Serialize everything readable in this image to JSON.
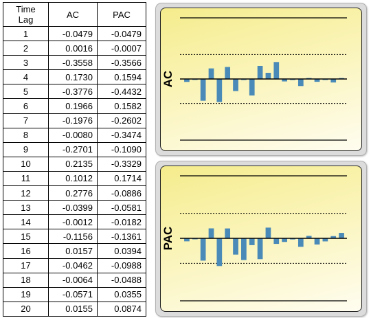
{
  "table": {
    "header": {
      "lag_line1": "Time",
      "lag_line2": "Lag",
      "ac": "AC",
      "pac": "PAC"
    },
    "rows": [
      {
        "lag": "1",
        "ac": "-0.0479",
        "pac": "-0.0479"
      },
      {
        "lag": "2",
        "ac": "0.0016",
        "pac": "-0.0007"
      },
      {
        "lag": "3",
        "ac": "-0.3558",
        "pac": "-0.3566"
      },
      {
        "lag": "4",
        "ac": "0.1730",
        "pac": "0.1594"
      },
      {
        "lag": "5",
        "ac": "-0.3776",
        "pac": "-0.4432"
      },
      {
        "lag": "6",
        "ac": "0.1966",
        "pac": "0.1582"
      },
      {
        "lag": "7",
        "ac": "-0.1976",
        "pac": "-0.2602"
      },
      {
        "lag": "8",
        "ac": "-0.0080",
        "pac": "-0.3474"
      },
      {
        "lag": "9",
        "ac": "-0.2701",
        "pac": "-0.1090"
      },
      {
        "lag": "10",
        "ac": "0.2135",
        "pac": "-0.3329"
      },
      {
        "lag": "11",
        "ac": "0.1012",
        "pac": "0.1714"
      },
      {
        "lag": "12",
        "ac": "0.2776",
        "pac": "-0.0886"
      },
      {
        "lag": "13",
        "ac": "-0.0399",
        "pac": "-0.0581"
      },
      {
        "lag": "14",
        "ac": "-0.0012",
        "pac": "-0.0182"
      },
      {
        "lag": "15",
        "ac": "-0.1156",
        "pac": "-0.1361"
      },
      {
        "lag": "16",
        "ac": "0.0157",
        "pac": "0.0394"
      },
      {
        "lag": "17",
        "ac": "-0.0462",
        "pac": "-0.0988"
      },
      {
        "lag": "18",
        "ac": "-0.0064",
        "pac": "-0.0488"
      },
      {
        "lag": "19",
        "ac": "-0.0571",
        "pac": "0.0355"
      },
      {
        "lag": "20",
        "ac": "0.0155",
        "pac": "0.0874"
      }
    ]
  },
  "colors": {
    "bar": "#4a8ab8",
    "panel_gradient_top": "#f5ec8c",
    "panel_gradient_bottom": "#fffdf0",
    "panel_frame": "#dcdcdc"
  },
  "chart_data": [
    {
      "type": "bar",
      "ylabel": "AC",
      "ylim": [
        -1,
        1
      ],
      "confidence_band": [
        -0.4,
        0.4
      ],
      "categories": [
        1,
        2,
        3,
        4,
        5,
        6,
        7,
        8,
        9,
        10,
        11,
        12,
        13,
        14,
        15,
        16,
        17,
        18,
        19,
        20
      ],
      "values": [
        -0.0479,
        0.0016,
        -0.3558,
        0.173,
        -0.3776,
        0.1966,
        -0.1976,
        -0.008,
        -0.2701,
        0.2135,
        0.1012,
        0.2776,
        -0.0399,
        -0.0012,
        -0.1156,
        0.0157,
        -0.0462,
        -0.0064,
        -0.0571,
        0.0155
      ]
    },
    {
      "type": "bar",
      "ylabel": "PAC",
      "ylim": [
        -1,
        1
      ],
      "confidence_band": [
        -0.4,
        0.4
      ],
      "categories": [
        1,
        2,
        3,
        4,
        5,
        6,
        7,
        8,
        9,
        10,
        11,
        12,
        13,
        14,
        15,
        16,
        17,
        18,
        19,
        20
      ],
      "values": [
        -0.0479,
        -0.0007,
        -0.3566,
        0.1594,
        -0.4432,
        0.1582,
        -0.2602,
        -0.3474,
        -0.109,
        -0.3329,
        0.1714,
        -0.0886,
        -0.0581,
        -0.0182,
        -0.1361,
        0.0394,
        -0.0988,
        -0.0488,
        0.0355,
        0.0874
      ]
    }
  ]
}
